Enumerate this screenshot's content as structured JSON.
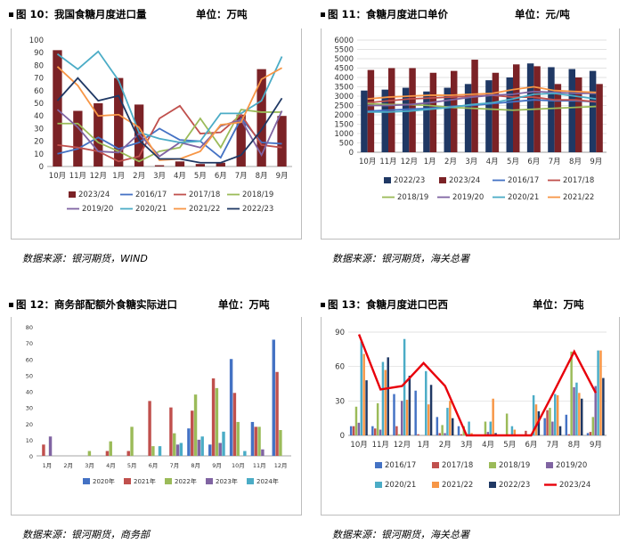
{
  "panels": {
    "p10": {
      "title": "图 10：我国食糖月度进口量",
      "unit": "单位：万吨",
      "source": "数据来源：银河期货，WIND"
    },
    "p11": {
      "title": "图 11：食糖月度进口单价",
      "unit": "单位：元/吨",
      "source": "数据来源：银河期货，海关总署"
    },
    "p12": {
      "title": "图 12：商务部配额外食糖实际进口",
      "unit": "单位：万吨",
      "source": "数据来源：银河期货，商务部"
    },
    "p13": {
      "title": "图 13：食糖月度进口巴西",
      "unit": "单位：万吨",
      "source": "数据来源：银河期货，海关总署"
    }
  },
  "chart_data": [
    {
      "id": "p10",
      "type": "bar",
      "categories": [
        "10月",
        "11月",
        "12月",
        "1月",
        "2月",
        "3月",
        "4月",
        "5月",
        "6月",
        "7月",
        "8月",
        "9月"
      ],
      "ylim": [
        0,
        100
      ],
      "yticks": [
        0,
        10,
        20,
        30,
        40,
        50,
        60,
        70,
        80,
        90,
        100
      ],
      "bars": {
        "name": "2023/24",
        "color": "#7b2226",
        "values": [
          92,
          44,
          50,
          70,
          49,
          1,
          4,
          2,
          3,
          41,
          77,
          40
        ]
      },
      "series": [
        {
          "name": "2016/17",
          "color": "#4472c4",
          "values": [
            10,
            14,
            23,
            14,
            19,
            30,
            21,
            20,
            7,
            38,
            19,
            18
          ]
        },
        {
          "name": "2017/18",
          "color": "#c0504d",
          "values": [
            17,
            15,
            12,
            4,
            8,
            38,
            48,
            26,
            27,
            41,
            17,
            15
          ]
        },
        {
          "name": "2018/19",
          "color": "#9bbb59",
          "values": [
            34,
            34,
            19,
            12,
            4,
            12,
            15,
            38,
            15,
            45,
            43,
            43
          ]
        },
        {
          "name": "2019/20",
          "color": "#8064a2",
          "values": [
            45,
            31,
            12,
            11,
            26,
            8,
            19,
            15,
            32,
            37,
            9,
            44
          ]
        },
        {
          "name": "2020/21",
          "color": "#4bacc6",
          "values": [
            89,
            77,
            91,
            68,
            27,
            22,
            19,
            20,
            42,
            42,
            52,
            87
          ]
        },
        {
          "name": "2021/22",
          "color": "#f79646",
          "values": [
            79,
            64,
            40,
            41,
            31,
            5,
            6,
            12,
            33,
            35,
            69,
            78
          ]
        },
        {
          "name": "2022/23",
          "color": "#1f3864",
          "values": [
            52,
            70,
            52,
            56,
            21,
            6,
            6,
            3,
            3,
            9,
            29,
            54
          ]
        }
      ]
    },
    {
      "id": "p11",
      "type": "bar",
      "categories": [
        "10月",
        "11月",
        "12月",
        "1月",
        "2月",
        "3月",
        "4月",
        "5月",
        "6月",
        "7月",
        "8月",
        "9月"
      ],
      "ylim": [
        0,
        6000
      ],
      "yticks": [
        0,
        500,
        1000,
        1500,
        2000,
        2500,
        3000,
        3500,
        4000,
        4500,
        5000,
        5500,
        6000
      ],
      "bars": [
        {
          "name": "2022/23",
          "color": "#1f3864",
          "values": [
            3300,
            3350,
            3450,
            3250,
            3450,
            3650,
            3850,
            4000,
            4750,
            4550,
            4450,
            4350
          ]
        },
        {
          "name": "2023/24",
          "color": "#7b2226",
          "values": [
            4400,
            4500,
            4500,
            4250,
            4350,
            4950,
            4250,
            4700,
            4600,
            3650,
            4000,
            3650
          ]
        }
      ],
      "series": [
        {
          "name": "2016/17",
          "color": "#4472c4",
          "values": [
            2200,
            2250,
            2300,
            2350,
            2450,
            2500,
            2600,
            2700,
            2800,
            2750,
            2750,
            2700
          ]
        },
        {
          "name": "2017/18",
          "color": "#c0504d",
          "values": [
            2650,
            2750,
            2850,
            2900,
            2950,
            3000,
            3050,
            2950,
            2950,
            2800,
            2800,
            2700
          ]
        },
        {
          "name": "2018/19",
          "color": "#9bbb59",
          "values": [
            2600,
            2550,
            2550,
            2500,
            2400,
            2350,
            2300,
            2250,
            2300,
            2350,
            2400,
            2450
          ]
        },
        {
          "name": "2019/20",
          "color": "#8064a2",
          "values": [
            2500,
            2500,
            2550,
            2650,
            2800,
            2950,
            3050,
            3100,
            3250,
            3200,
            3150,
            3150
          ]
        },
        {
          "name": "2020/21",
          "color": "#4bacc6",
          "values": [
            2150,
            2150,
            2200,
            2300,
            2400,
            2550,
            2650,
            2850,
            3100,
            3150,
            3000,
            2850
          ]
        },
        {
          "name": "2021/22",
          "color": "#f79646",
          "values": [
            2850,
            2950,
            3000,
            3050,
            3050,
            3100,
            3150,
            3350,
            3500,
            3300,
            3250,
            3200
          ]
        }
      ]
    },
    {
      "id": "p12",
      "type": "bar",
      "categories": [
        "1月",
        "2月",
        "3月",
        "4月",
        "5月",
        "6月",
        "7月",
        "8月",
        "9月",
        "10月",
        "11月",
        "12月"
      ],
      "ylim": [
        0,
        80
      ],
      "yticks": [
        0,
        10,
        20,
        30,
        40,
        50,
        60,
        70,
        80
      ],
      "series": [
        {
          "name": "2020年",
          "color": "#4472c4",
          "values": [
            0,
            0,
            0,
            0,
            0,
            0,
            0,
            17,
            7,
            60,
            21,
            72
          ]
        },
        {
          "name": "2021年",
          "color": "#c0504d",
          "values": [
            7,
            0,
            0,
            3,
            3,
            34,
            30,
            28,
            48,
            39,
            18,
            52
          ]
        },
        {
          "name": "2022年",
          "color": "#9bbb59",
          "values": [
            0,
            0,
            3,
            9,
            18,
            6,
            14,
            38,
            42,
            21,
            18,
            16
          ]
        },
        {
          "name": "2023年",
          "color": "#8064a2",
          "values": [
            12,
            0,
            0,
            0,
            0,
            0,
            7,
            10,
            8,
            0,
            4,
            0
          ]
        },
        {
          "name": "2024年",
          "color": "#4bacc6",
          "values": [
            0,
            0,
            0,
            0,
            0,
            6,
            8,
            12,
            15,
            3,
            0,
            0
          ]
        }
      ]
    },
    {
      "id": "p13",
      "type": "bar",
      "categories": [
        "10月",
        "11月",
        "12月",
        "1月",
        "2月",
        "3月",
        "4月",
        "5月",
        "6月",
        "7月",
        "8月",
        "9月"
      ],
      "ylim": [
        0,
        90
      ],
      "yticks": [
        0,
        30,
        60,
        90
      ],
      "series": [
        {
          "name": "2016/17",
          "color": "#4472c4",
          "values": [
            8,
            8,
            36,
            39,
            16,
            8,
            0,
            0,
            0,
            15,
            18,
            2
          ]
        },
        {
          "name": "2017/18",
          "color": "#c0504d",
          "values": [
            8,
            6,
            8,
            1,
            2,
            1,
            0,
            0,
            4,
            22,
            1,
            3
          ]
        },
        {
          "name": "2018/19",
          "color": "#9bbb59",
          "values": [
            25,
            28,
            1,
            0,
            9,
            8,
            12,
            19,
            0,
            24,
            73,
            16
          ]
        },
        {
          "name": "2019/20",
          "color": "#8064a2",
          "values": [
            11,
            5,
            30,
            0,
            2,
            1,
            3,
            0,
            1,
            12,
            42,
            43
          ]
        },
        {
          "name": "2020/21",
          "color": "#4bacc6",
          "values": [
            82,
            64,
            84,
            56,
            24,
            12,
            12,
            8,
            35,
            36,
            46,
            74
          ]
        },
        {
          "name": "2021/22",
          "color": "#f79646",
          "values": [
            71,
            57,
            31,
            27,
            30,
            2,
            32,
            5,
            27,
            35,
            37,
            74
          ]
        },
        {
          "name": "2022/23",
          "color": "#1f3864",
          "values": [
            48,
            68,
            52,
            44,
            15,
            0,
            2,
            0,
            21,
            8,
            32,
            50
          ]
        }
      ],
      "line": {
        "name": "2023/24",
        "color": "#e8000b",
        "values": [
          88,
          40,
          43,
          63,
          43,
          0,
          0,
          0,
          0,
          36,
          73,
          37
        ]
      }
    }
  ]
}
